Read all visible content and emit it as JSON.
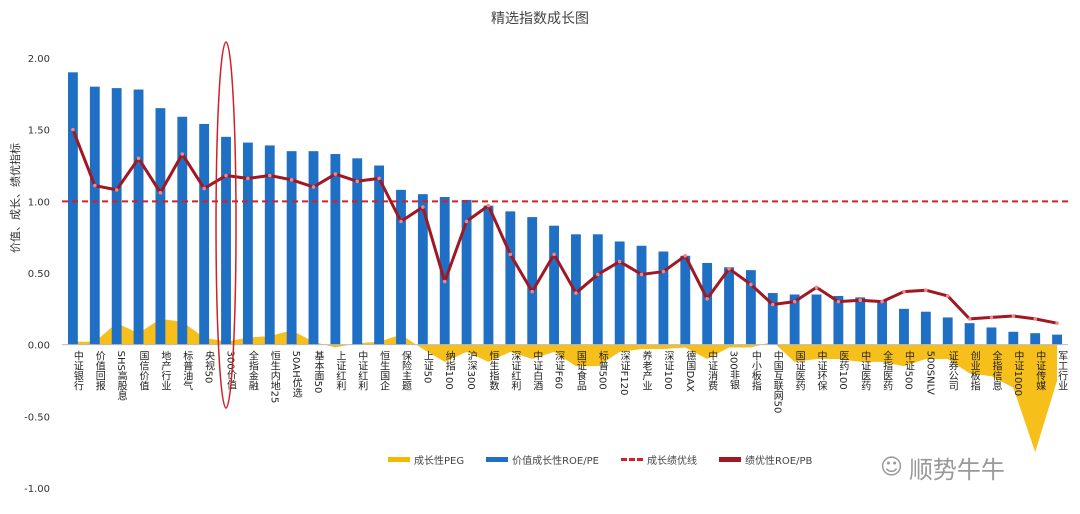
{
  "chart_data": {
    "type": "bar",
    "title": "精选指数成长图",
    "ylabel": "价值、成长、绩优指标",
    "ylim": [
      -1.0,
      2.0
    ],
    "yticks": [
      "2.00",
      "1.50",
      "1.00",
      "0.50",
      "0.00",
      "-0.50",
      "-1.00"
    ],
    "grid": false,
    "legend_position": "bottom",
    "categories": [
      "中证银行",
      "价值回报",
      "SHS高股息",
      "国信价值",
      "地产行业",
      "标普油气",
      "央视50",
      "300价值",
      "全指金融",
      "恒生内地25",
      "50AH优选",
      "基本面50",
      "上证红利",
      "中证红利",
      "恒生国企",
      "保险主题",
      "上证50",
      "纳指100",
      "沪深300",
      "恒生指数",
      "深证红利",
      "中证白酒",
      "深证F60",
      "国证食品",
      "标普500",
      "深证F120",
      "养老产业",
      "深证100",
      "德国DAX",
      "中证消费",
      "300非银",
      "中小板指",
      "中国互联网50",
      "国证医药",
      "中证环保",
      "医药100",
      "中证医药",
      "全指医药",
      "中证500",
      "500SNLV",
      "证券公司",
      "创业板指",
      "全指信息",
      "中证1000",
      "中证传媒",
      "军工行业"
    ],
    "series": [
      {
        "name": "成长性PEG",
        "type": "area",
        "color": "#f5b800",
        "values": [
          0.02,
          0.02,
          0.15,
          0.08,
          0.18,
          0.16,
          0.05,
          0.02,
          0.05,
          0.06,
          0.1,
          0.02,
          -0.02,
          0.01,
          0.02,
          0.07,
          -0.03,
          -0.12,
          -0.05,
          -0.12,
          -0.05,
          -0.1,
          -0.05,
          -0.15,
          -0.15,
          -0.05,
          -0.03,
          -0.03,
          -0.02,
          -0.1,
          -0.02,
          -0.02,
          0.02,
          -0.12,
          -0.1,
          -0.1,
          -0.12,
          -0.12,
          -0.15,
          -0.1,
          -0.1,
          -0.2,
          -0.22,
          -0.3,
          -0.75,
          -0.25
        ]
      },
      {
        "name": "价值成长性ROE/PE",
        "type": "bar",
        "color": "#1f6fc5",
        "values": [
          1.9,
          1.8,
          1.79,
          1.78,
          1.65,
          1.59,
          1.54,
          1.45,
          1.41,
          1.39,
          1.35,
          1.35,
          1.33,
          1.3,
          1.25,
          1.08,
          1.05,
          1.03,
          1.01,
          0.97,
          0.93,
          0.89,
          0.83,
          0.77,
          0.77,
          0.72,
          0.69,
          0.65,
          0.62,
          0.57,
          0.54,
          0.52,
          0.36,
          0.35,
          0.35,
          0.34,
          0.33,
          0.31,
          0.25,
          0.23,
          0.19,
          0.15,
          0.12,
          0.09,
          0.08,
          0.07
        ]
      },
      {
        "name": "成长绩优线",
        "type": "hline",
        "color": "#d0202a",
        "value": 1.0
      },
      {
        "name": "绩优性ROE/PB",
        "type": "line",
        "color": "#a01822",
        "values": [
          1.5,
          1.11,
          1.08,
          1.3,
          1.06,
          1.33,
          1.09,
          1.18,
          1.16,
          1.18,
          1.15,
          1.1,
          1.19,
          1.14,
          1.16,
          0.86,
          0.96,
          0.44,
          0.86,
          0.97,
          0.63,
          0.37,
          0.63,
          0.36,
          0.49,
          0.58,
          0.49,
          0.51,
          0.62,
          0.32,
          0.53,
          0.42,
          0.28,
          0.3,
          0.4,
          0.3,
          0.31,
          0.3,
          0.37,
          0.38,
          0.34,
          0.18,
          0.19,
          0.2,
          0.18,
          0.15
        ]
      }
    ],
    "annotation": {
      "type": "ellipse",
      "highlight": "300价值",
      "color": "#d0202a"
    }
  },
  "watermark": {
    "text": "顺势牛牛",
    "icon": "wechat-icon"
  }
}
